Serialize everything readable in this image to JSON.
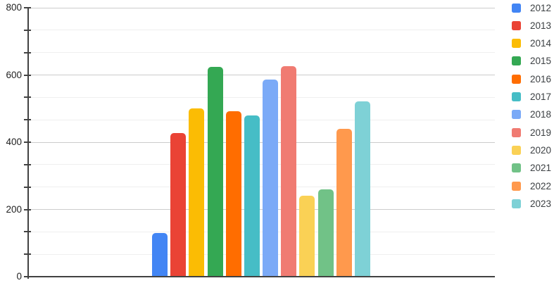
{
  "chart_data": {
    "type": "bar",
    "title": "",
    "xlabel": "",
    "ylabel": "",
    "categories": [
      "2012",
      "2013",
      "2014",
      "2015",
      "2016",
      "2017",
      "2018",
      "2019",
      "2020",
      "2021",
      "2022",
      "2023"
    ],
    "values": [
      130,
      428,
      500,
      624,
      493,
      480,
      586,
      627,
      240,
      260,
      440,
      521
    ],
    "colors": [
      "#4285F4",
      "#EA4335",
      "#FBBC04",
      "#34A853",
      "#FF6D00",
      "#46BDC6",
      "#7BAAF7",
      "#F07B72",
      "#FAD155",
      "#71C287",
      "#FF994D",
      "#7ED1D6"
    ],
    "ylim": [
      0,
      800
    ],
    "y_major_ticks": [
      0,
      200,
      400,
      600,
      800
    ],
    "y_major_tick_labels": [
      "0",
      "200",
      "400",
      "600",
      "800"
    ],
    "y_minor_ticks": [
      66.67,
      133.33,
      266.67,
      333.33,
      466.67,
      533.33,
      666.67,
      733.33
    ],
    "grid": "on",
    "legend_position": "right"
  },
  "style": {
    "background": "#ffffff",
    "axis_color": "#424242",
    "major_grid_color": "#cccccc",
    "minor_grid_color": "#efefef",
    "tick_label_color": "#1f1f1f",
    "legend_text_color": "#3c4043"
  }
}
